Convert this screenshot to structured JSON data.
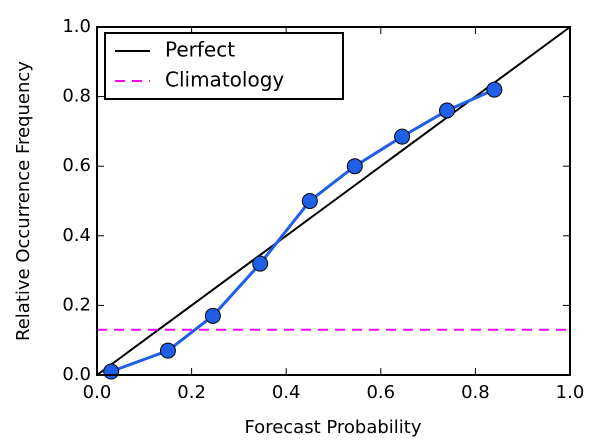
{
  "chart_data": {
    "type": "line",
    "x_label": "Forecast Probability",
    "y_label": "Relative Occurrence Frequency",
    "xlim": [
      0,
      1
    ],
    "ylim": [
      0,
      1
    ],
    "xticks": [
      {
        "value": 0,
        "label": "0.0"
      },
      0.2,
      0.4,
      0.6,
      0.8,
      {
        "value": 1,
        "label": "1.0"
      }
    ],
    "yticks": [
      {
        "value": 0,
        "label": "0.0"
      },
      0.2,
      0.4,
      0.6,
      0.8,
      {
        "value": 1,
        "label": "1.0"
      }
    ],
    "legend": "upper left",
    "series": [
      {
        "name": "Perfect",
        "color": "#000000",
        "x": [
          0,
          1
        ],
        "values": [
          0,
          1
        ]
      },
      {
        "name": "Climatology",
        "color": "#ff00ff",
        "dash": true,
        "x": [
          0,
          1
        ],
        "values": [
          0.13,
          0.13
        ]
      },
      {
        "color": "#1f5fe8",
        "marker": true,
        "x": [
          0.03,
          0.15,
          0.245,
          0.345,
          0.45,
          0.545,
          0.645,
          0.74,
          0.84
        ],
        "values": [
          0.01,
          0.07,
          0.17,
          0.32,
          0.5,
          0.6,
          0.685,
          0.76,
          0.82
        ]
      }
    ]
  }
}
